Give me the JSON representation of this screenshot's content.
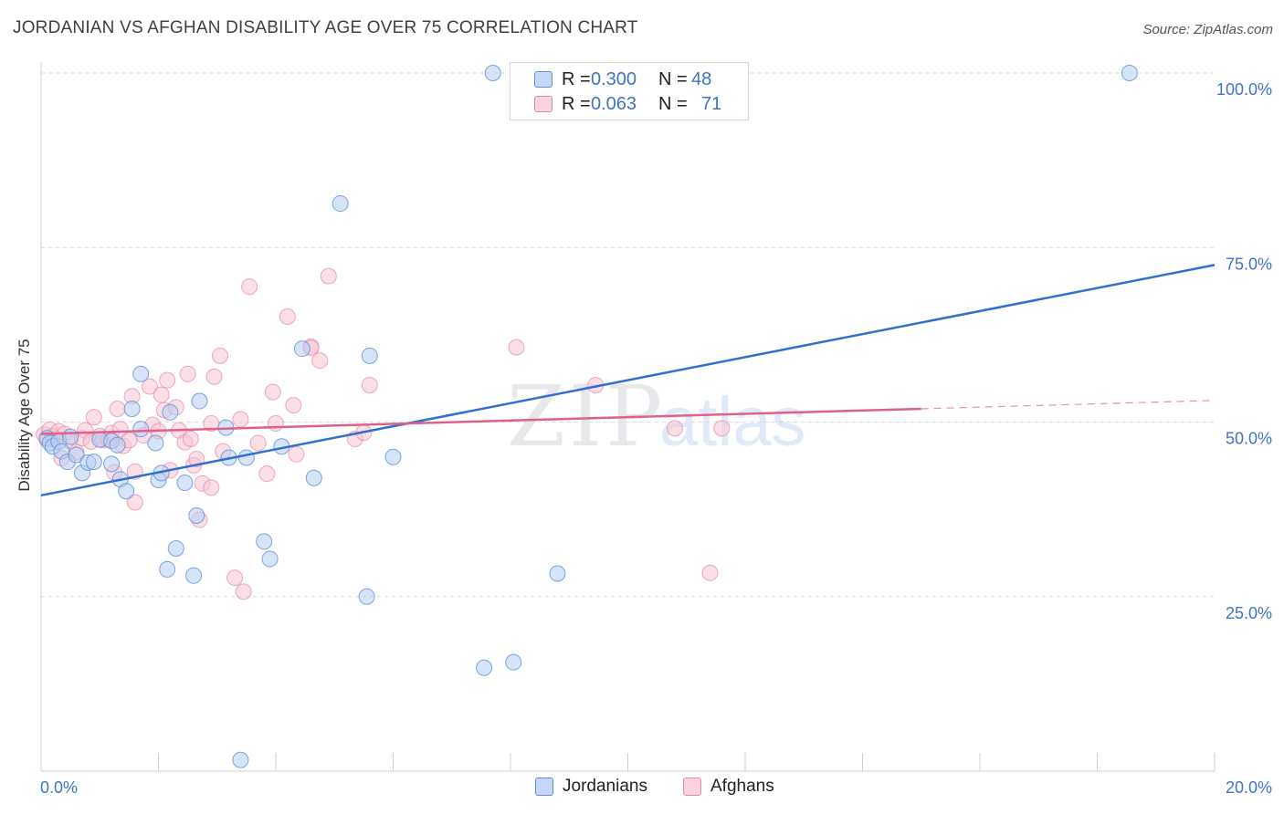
{
  "title": "JORDANIAN VS AFGHAN DISABILITY AGE OVER 75 CORRELATION CHART",
  "source": "Source: ZipAtlas.com",
  "watermark": {
    "zip": "ZIP",
    "atlas": "atlas"
  },
  "legend_top": {
    "rows": [
      {
        "r_label": "R =",
        "r_value": "0.300",
        "n_label": "N =",
        "n_value": "48"
      },
      {
        "r_label": "R =",
        "r_value": "0.063",
        "n_label": "N =",
        "n_value": "71"
      }
    ]
  },
  "legend_bottom": [
    "Jordanians",
    "Afghans"
  ],
  "colors": {
    "jordanian_fill": "#b6cdf3",
    "jordanian_stroke": "#5b8fd8",
    "jordanian_line": "#2f6fcf",
    "afghan_fill": "#f8c4d4",
    "afghan_stroke": "#e487a6",
    "afghan_line": "#e0608c",
    "value_text": "#3d74c8",
    "grid": "#d9d9d9"
  },
  "chart_data": {
    "type": "scatter",
    "title": "JORDANIAN VS AFGHAN DISABILITY AGE OVER 75 CORRELATION CHART",
    "xlabel": "",
    "ylabel": "Disability Age Over 75",
    "xlim": [
      0,
      20
    ],
    "ylim": [
      0,
      100
    ],
    "x_tick_labels": [
      "0.0%",
      "20.0%"
    ],
    "y_tick_labels": [
      "25.0%",
      "50.0%",
      "75.0%",
      "100.0%"
    ],
    "y_ticks": [
      25,
      50,
      75,
      100
    ],
    "grid": true,
    "legend_position": "top-center",
    "series": [
      {
        "name": "Jordanians",
        "R": 0.3,
        "N": 48,
        "trend": {
          "x0": 0,
          "y0": 39.5,
          "x1": 20,
          "y1": 72.5,
          "dashed_from_x": null
        },
        "points": [
          [
            0.1,
            47.7
          ],
          [
            0.15,
            47.0
          ],
          [
            0.2,
            46.5
          ],
          [
            0.3,
            47.2
          ],
          [
            0.35,
            45.8
          ],
          [
            0.45,
            44.3
          ],
          [
            0.5,
            47.9
          ],
          [
            0.6,
            45.3
          ],
          [
            0.7,
            42.7
          ],
          [
            0.8,
            44.2
          ],
          [
            0.9,
            44.3
          ],
          [
            1.0,
            47.5
          ],
          [
            1.2,
            47.3
          ],
          [
            1.2,
            44.0
          ],
          [
            1.3,
            46.7
          ],
          [
            1.35,
            41.8
          ],
          [
            1.45,
            40.1
          ],
          [
            1.55,
            51.9
          ],
          [
            1.7,
            56.9
          ],
          [
            1.7,
            49.0
          ],
          [
            1.95,
            47.0
          ],
          [
            2.0,
            41.7
          ],
          [
            2.05,
            42.7
          ],
          [
            2.15,
            28.9
          ],
          [
            2.2,
            51.4
          ],
          [
            2.3,
            31.9
          ],
          [
            2.45,
            41.3
          ],
          [
            2.6,
            28.0
          ],
          [
            2.65,
            36.6
          ],
          [
            2.7,
            53.0
          ],
          [
            3.15,
            49.2
          ],
          [
            3.2,
            44.9
          ],
          [
            3.4,
            1.6
          ],
          [
            3.5,
            44.9
          ],
          [
            3.8,
            32.9
          ],
          [
            3.9,
            30.4
          ],
          [
            4.1,
            46.5
          ],
          [
            4.45,
            60.5
          ],
          [
            4.65,
            42.0
          ],
          [
            5.1,
            81.3
          ],
          [
            5.55,
            25.0
          ],
          [
            5.6,
            59.5
          ],
          [
            6.0,
            45.0
          ],
          [
            7.7,
            100.0
          ],
          [
            7.55,
            14.8
          ],
          [
            8.05,
            15.6
          ],
          [
            8.8,
            28.3
          ],
          [
            18.55,
            100.0
          ]
        ]
      },
      {
        "name": "Afghans",
        "R": 0.063,
        "N": 71,
        "trend": {
          "x0": 0,
          "y0": 48.3,
          "x1": 20,
          "y1": 53.1,
          "dashed_from_x": 15.0
        },
        "points": [
          [
            0.05,
            48.2
          ],
          [
            0.1,
            47.5
          ],
          [
            0.15,
            48.9
          ],
          [
            0.2,
            48.0
          ],
          [
            0.25,
            47.6
          ],
          [
            0.3,
            48.7
          ],
          [
            0.35,
            44.8
          ],
          [
            0.4,
            48.3
          ],
          [
            0.5,
            47.3
          ],
          [
            0.6,
            45.7
          ],
          [
            0.7,
            47.7
          ],
          [
            0.75,
            48.8
          ],
          [
            0.85,
            47.2
          ],
          [
            0.9,
            50.7
          ],
          [
            1.0,
            48.0
          ],
          [
            1.05,
            47.4
          ],
          [
            1.15,
            47.5
          ],
          [
            1.2,
            48.4
          ],
          [
            1.25,
            42.8
          ],
          [
            1.3,
            51.9
          ],
          [
            1.35,
            49.0
          ],
          [
            1.4,
            46.6
          ],
          [
            1.5,
            47.4
          ],
          [
            1.55,
            53.7
          ],
          [
            1.6,
            42.9
          ],
          [
            1.6,
            38.5
          ],
          [
            1.75,
            48.1
          ],
          [
            1.85,
            55.1
          ],
          [
            1.9,
            49.6
          ],
          [
            2.0,
            48.7
          ],
          [
            2.05,
            53.9
          ],
          [
            2.1,
            51.7
          ],
          [
            2.15,
            56.0
          ],
          [
            2.2,
            43.1
          ],
          [
            2.3,
            52.1
          ],
          [
            2.35,
            48.8
          ],
          [
            2.45,
            47.1
          ],
          [
            2.5,
            56.9
          ],
          [
            2.55,
            47.6
          ],
          [
            2.6,
            43.8
          ],
          [
            2.65,
            44.7
          ],
          [
            2.7,
            36.0
          ],
          [
            2.75,
            41.2
          ],
          [
            2.9,
            49.8
          ],
          [
            2.9,
            40.6
          ],
          [
            2.95,
            56.5
          ],
          [
            3.05,
            59.5
          ],
          [
            3.1,
            45.8
          ],
          [
            3.3,
            27.7
          ],
          [
            3.4,
            50.4
          ],
          [
            3.45,
            25.7
          ],
          [
            3.55,
            69.4
          ],
          [
            3.7,
            47.0
          ],
          [
            3.85,
            42.6
          ],
          [
            3.95,
            54.3
          ],
          [
            4.0,
            49.8
          ],
          [
            4.2,
            65.1
          ],
          [
            4.3,
            52.4
          ],
          [
            4.35,
            45.4
          ],
          [
            4.6,
            60.8
          ],
          [
            4.6,
            60.6
          ],
          [
            4.75,
            58.8
          ],
          [
            4.9,
            70.9
          ],
          [
            5.35,
            47.6
          ],
          [
            5.5,
            48.5
          ],
          [
            5.6,
            55.3
          ],
          [
            8.1,
            60.7
          ],
          [
            9.45,
            55.3
          ],
          [
            10.8,
            49.1
          ],
          [
            11.6,
            49.1
          ],
          [
            11.4,
            28.4
          ]
        ]
      }
    ]
  }
}
